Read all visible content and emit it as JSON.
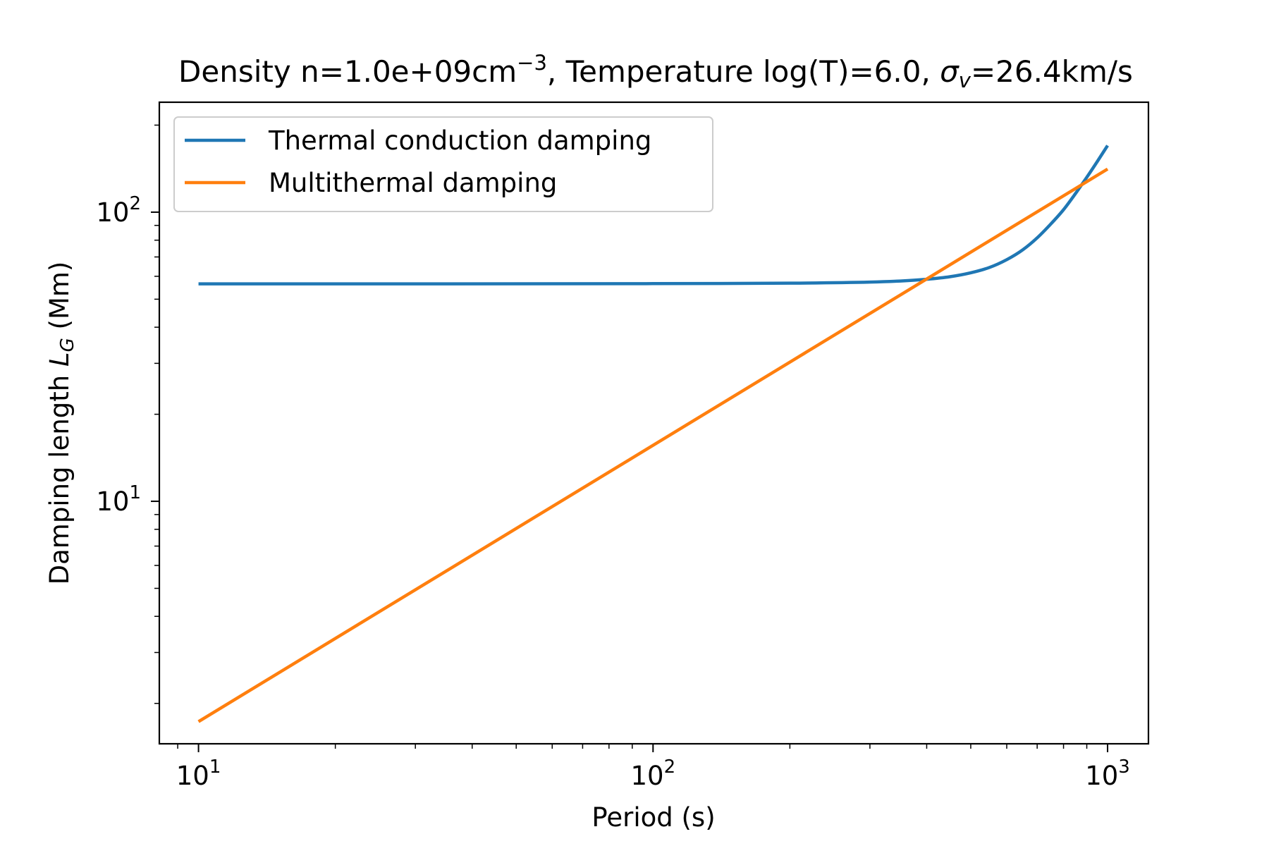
{
  "chart_data": {
    "type": "line",
    "title": {
      "prefix": "Density n=1.0e+09cm",
      "prefix_sup": "−3",
      "middle": ", Temperature log(T)=6.0, ",
      "sigma": "σ",
      "sigma_sub": "v",
      "suffix": "=26.4km/s"
    },
    "xlabel": "Period (s)",
    "ylabel": {
      "prefix": "Damping length ",
      "symbol": "L",
      "symbol_sub": "G",
      "suffix": " (Mm)"
    },
    "xscale": "log",
    "yscale": "log",
    "xlim": [
      8.2,
      1230
    ],
    "ylim": [
      1.45,
      240
    ],
    "x_ticks": [
      {
        "base": "10",
        "exp": "1",
        "value": 10
      },
      {
        "base": "10",
        "exp": "2",
        "value": 100
      },
      {
        "base": "10",
        "exp": "3",
        "value": 1000
      }
    ],
    "y_ticks": [
      {
        "base": "10",
        "exp": "1",
        "value": 10
      },
      {
        "base": "10",
        "exp": "2",
        "value": 100
      }
    ],
    "legend_position": "upper-left",
    "series": [
      {
        "name": "Thermal conduction damping",
        "color": "#1f77b4",
        "x": [
          10,
          30,
          100,
          200,
          300,
          350,
          400,
          450,
          500,
          550,
          600,
          650,
          700,
          750,
          800,
          850,
          900,
          950,
          1000
        ],
        "y": [
          56.5,
          56.5,
          56.6,
          56.8,
          57.3,
          57.8,
          58.6,
          59.8,
          61.7,
          64.4,
          68.5,
          74.0,
          81.5,
          91.0,
          102,
          116,
          132,
          150,
          170
        ]
      },
      {
        "name": "Multithermal damping",
        "color": "#ff7f0e",
        "x": [
          10,
          1000
        ],
        "y": [
          1.73,
          141
        ]
      }
    ]
  }
}
